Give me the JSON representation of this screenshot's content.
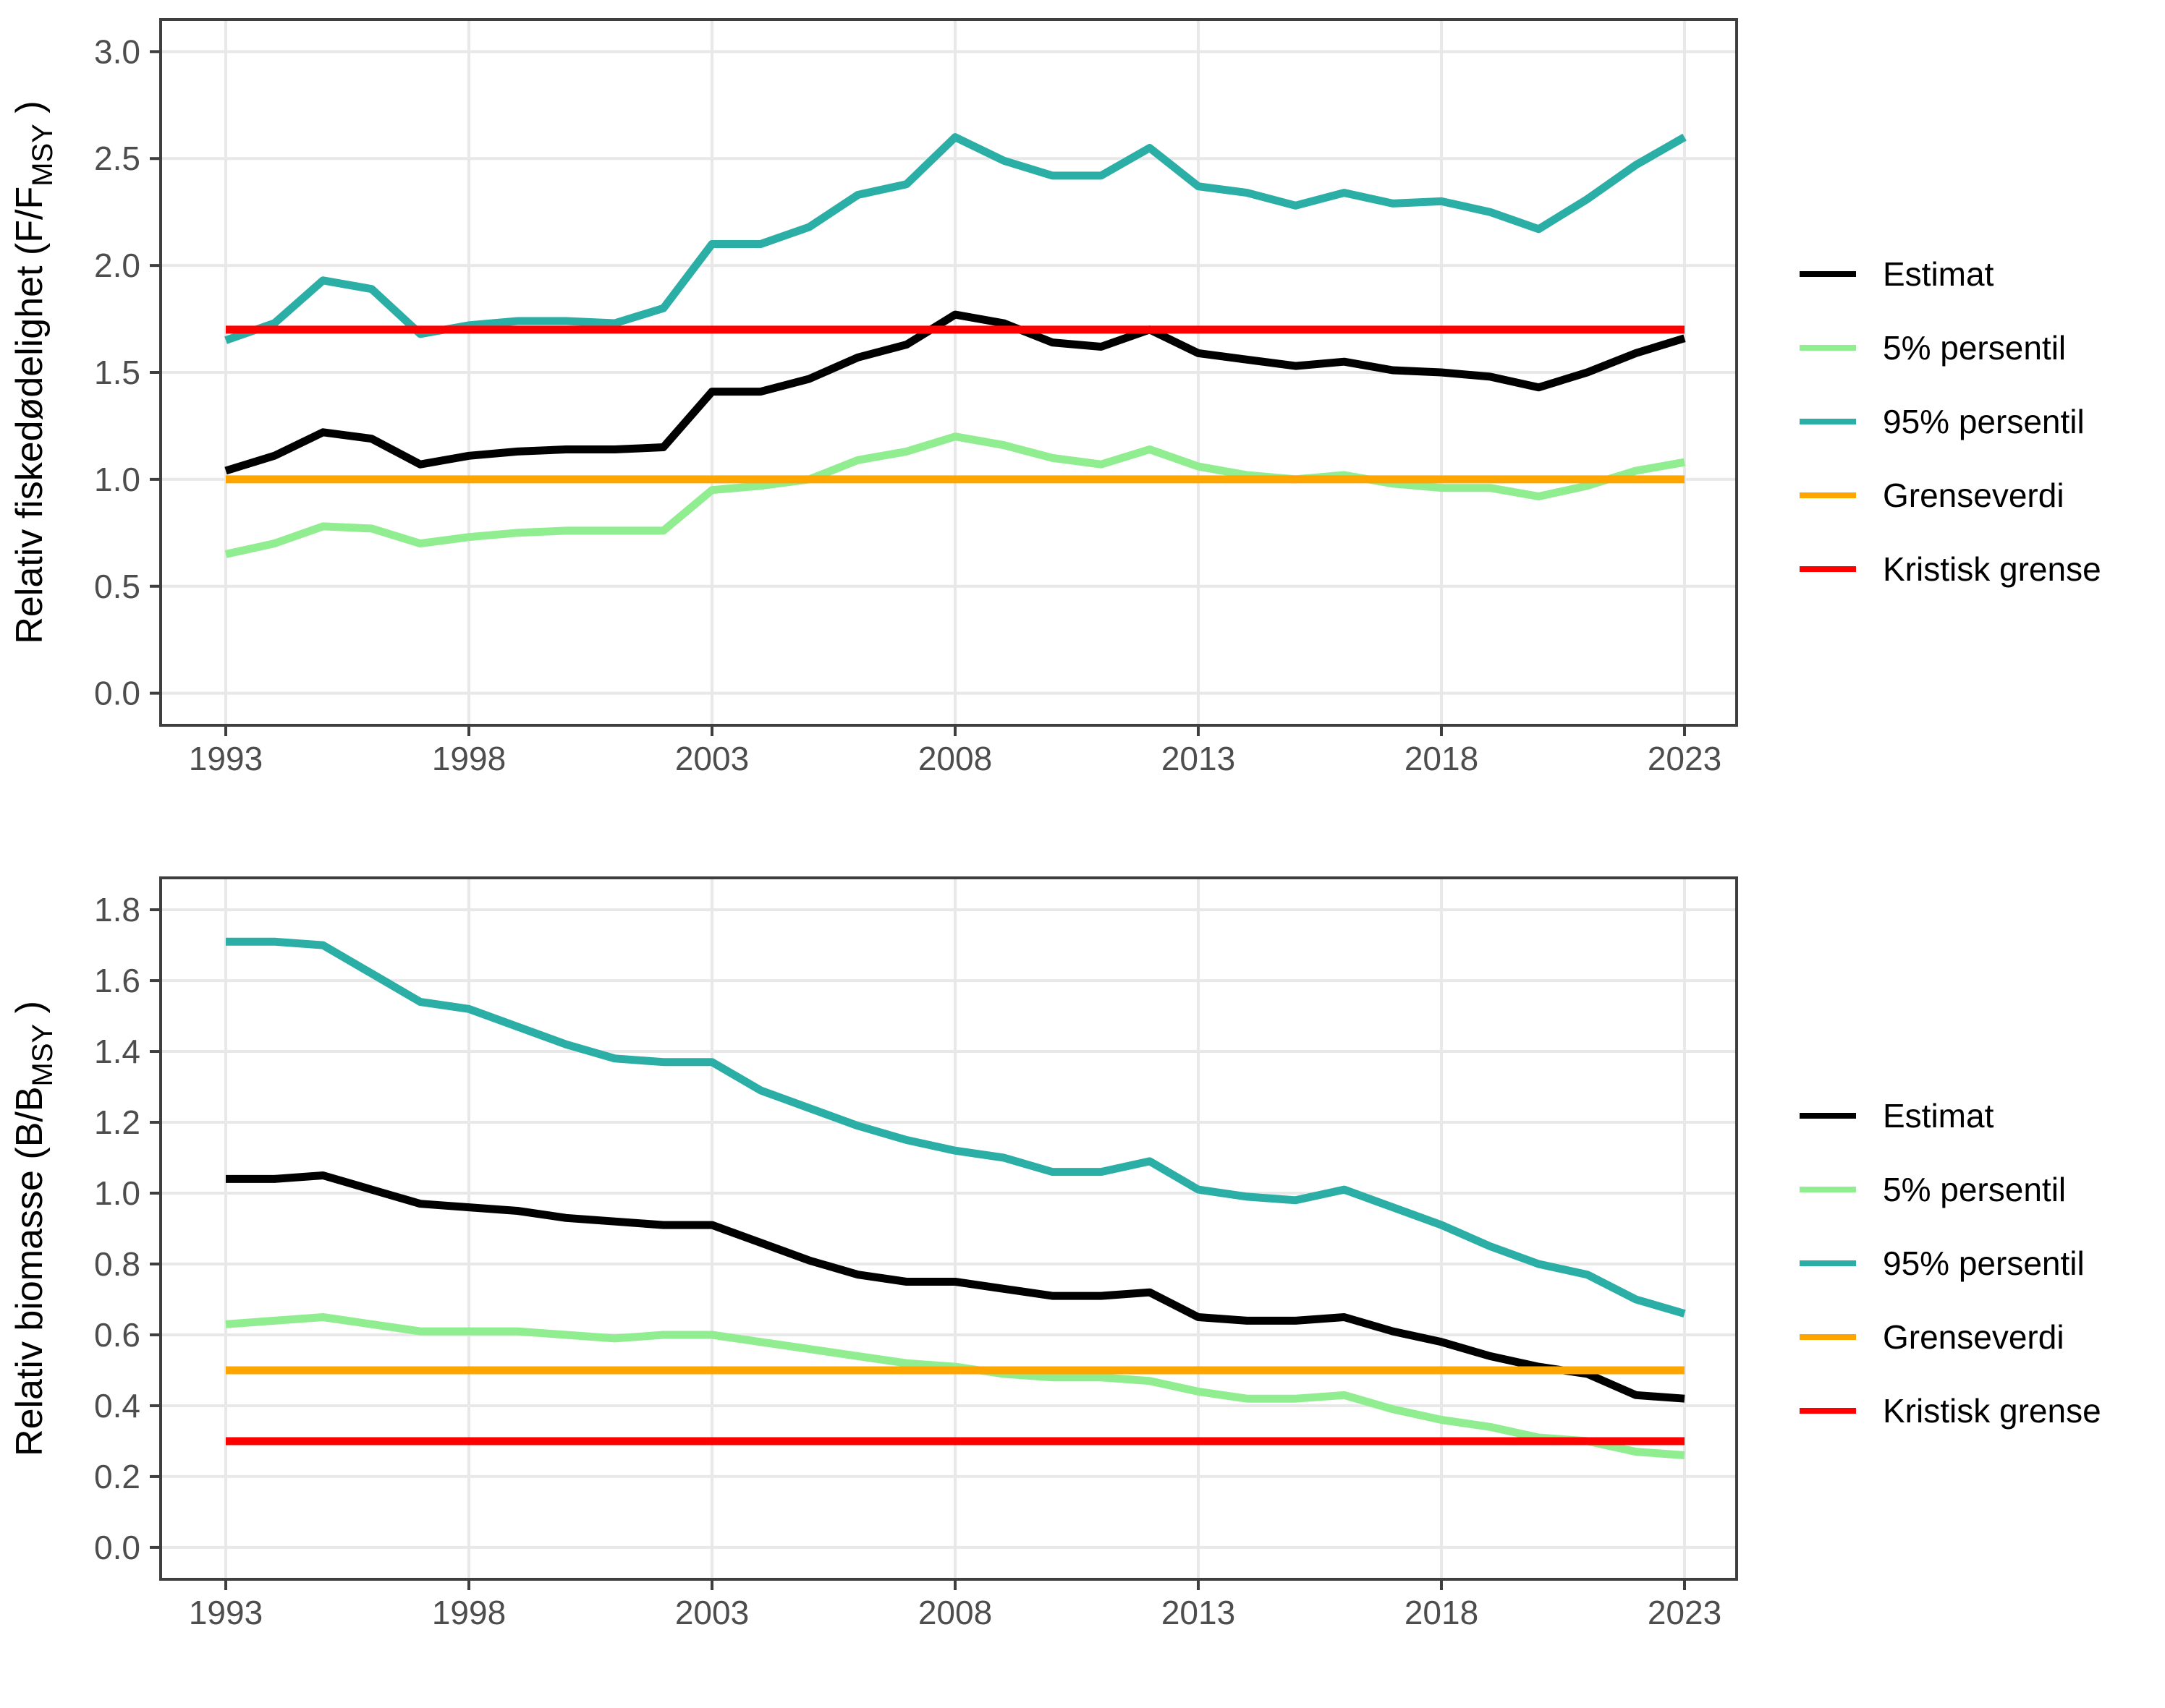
{
  "figure": {
    "background": "#FFFFFF",
    "tick_text_color": "#4D4D4D",
    "axis_title_color": "#000000",
    "grid_color": "#E8E8E8",
    "border_color": "#3F3F3F"
  },
  "legend": {
    "items": [
      "Estimat",
      "5% persentil",
      "95% persentil",
      "Grenseverdi",
      "Kristisk grense"
    ],
    "colors": [
      "#000000",
      "#90EE90",
      "#2AAEA6",
      "#FFA500",
      "#FF0000"
    ]
  },
  "chart_data": [
    {
      "type": "line",
      "title": "",
      "xlabel": "",
      "ylabel": {
        "prefix": "Relativ fiskedødelighet (F/F",
        "sub": "MSY",
        "suffix": " )"
      },
      "x": [
        1993,
        1994,
        1995,
        1996,
        1997,
        1998,
        1999,
        2000,
        2001,
        2002,
        2003,
        2004,
        2005,
        2006,
        2007,
        2008,
        2009,
        2010,
        2011,
        2012,
        2013,
        2014,
        2015,
        2016,
        2017,
        2018,
        2019,
        2020,
        2021,
        2022,
        2023
      ],
      "xticks": [
        "1993",
        "1998",
        "2003",
        "2008",
        "2013",
        "2018",
        "2023"
      ],
      "xtick_years": [
        1993,
        1998,
        2003,
        2008,
        2013,
        2018,
        2023
      ],
      "yticks": [
        "0.0",
        "0.5",
        "1.0",
        "1.5",
        "2.0",
        "2.5",
        "3.0"
      ],
      "ytick_values": [
        0.0,
        0.5,
        1.0,
        1.5,
        2.0,
        2.5,
        3.0
      ],
      "ylim": [
        -0.15,
        3.15
      ],
      "grid": "major",
      "legend_position": "right",
      "series": [
        {
          "name": "Estimat",
          "color": "#000000",
          "values": [
            1.04,
            1.11,
            1.22,
            1.19,
            1.07,
            1.11,
            1.13,
            1.14,
            1.14,
            1.15,
            1.41,
            1.41,
            1.47,
            1.57,
            1.63,
            1.77,
            1.73,
            1.64,
            1.62,
            1.7,
            1.59,
            1.56,
            1.53,
            1.55,
            1.51,
            1.5,
            1.48,
            1.43,
            1.5,
            1.59,
            1.66
          ]
        },
        {
          "name": "5% persentil",
          "color": "#90EE90",
          "values": [
            0.65,
            0.7,
            0.78,
            0.77,
            0.7,
            0.73,
            0.75,
            0.76,
            0.76,
            0.76,
            0.95,
            0.97,
            1.0,
            1.09,
            1.13,
            1.2,
            1.16,
            1.1,
            1.07,
            1.14,
            1.06,
            1.02,
            1.0,
            1.02,
            0.98,
            0.96,
            0.96,
            0.92,
            0.97,
            1.04,
            1.08
          ]
        },
        {
          "name": "95% persentil",
          "color": "#2AAEA6",
          "values": [
            1.65,
            1.73,
            1.93,
            1.89,
            1.68,
            1.72,
            1.74,
            1.74,
            1.73,
            1.8,
            2.1,
            2.1,
            2.18,
            2.33,
            2.38,
            2.6,
            2.49,
            2.42,
            2.42,
            2.55,
            2.37,
            2.34,
            2.28,
            2.34,
            2.29,
            2.3,
            2.25,
            2.17,
            2.31,
            2.47,
            2.6
          ]
        },
        {
          "name": "Grenseverdi",
          "color": "#FFA500",
          "constant": 1.0
        },
        {
          "name": "Kristisk grense",
          "color": "#FF0000",
          "constant": 1.7
        }
      ]
    },
    {
      "type": "line",
      "title": "",
      "xlabel": "",
      "ylabel": {
        "prefix": "Relativ biomasse (B/B",
        "sub": "MSY",
        "suffix": " )"
      },
      "x": [
        1993,
        1994,
        1995,
        1996,
        1997,
        1998,
        1999,
        2000,
        2001,
        2002,
        2003,
        2004,
        2005,
        2006,
        2007,
        2008,
        2009,
        2010,
        2011,
        2012,
        2013,
        2014,
        2015,
        2016,
        2017,
        2018,
        2019,
        2020,
        2021,
        2022,
        2023
      ],
      "xticks": [
        "1993",
        "1998",
        "2003",
        "2008",
        "2013",
        "2018",
        "2023"
      ],
      "xtick_years": [
        1993,
        1998,
        2003,
        2008,
        2013,
        2018,
        2023
      ],
      "yticks": [
        "0.0",
        "0.2",
        "0.4",
        "0.6",
        "0.8",
        "1.0",
        "1.2",
        "1.4",
        "1.6",
        "1.8"
      ],
      "ytick_values": [
        0.0,
        0.2,
        0.4,
        0.6,
        0.8,
        1.0,
        1.2,
        1.4,
        1.6,
        1.8
      ],
      "ylim": [
        -0.09,
        1.89
      ],
      "grid": "major",
      "legend_position": "right",
      "series": [
        {
          "name": "Estimat",
          "color": "#000000",
          "values": [
            1.04,
            1.04,
            1.05,
            1.01,
            0.97,
            0.96,
            0.95,
            0.93,
            0.92,
            0.91,
            0.91,
            0.86,
            0.81,
            0.77,
            0.75,
            0.75,
            0.73,
            0.71,
            0.71,
            0.72,
            0.65,
            0.64,
            0.64,
            0.65,
            0.61,
            0.58,
            0.54,
            0.51,
            0.49,
            0.43,
            0.42
          ]
        },
        {
          "name": "5% persentil",
          "color": "#90EE90",
          "values": [
            0.63,
            0.64,
            0.65,
            0.63,
            0.61,
            0.61,
            0.61,
            0.6,
            0.59,
            0.6,
            0.6,
            0.58,
            0.56,
            0.54,
            0.52,
            0.51,
            0.49,
            0.48,
            0.48,
            0.47,
            0.44,
            0.42,
            0.42,
            0.43,
            0.39,
            0.36,
            0.34,
            0.31,
            0.3,
            0.27,
            0.26
          ]
        },
        {
          "name": "95% persentil",
          "color": "#2AAEA6",
          "values": [
            1.71,
            1.71,
            1.7,
            1.62,
            1.54,
            1.52,
            1.47,
            1.42,
            1.38,
            1.37,
            1.37,
            1.29,
            1.24,
            1.19,
            1.15,
            1.12,
            1.1,
            1.06,
            1.06,
            1.09,
            1.01,
            0.99,
            0.98,
            1.01,
            0.96,
            0.91,
            0.85,
            0.8,
            0.77,
            0.7,
            0.66
          ]
        },
        {
          "name": "Grenseverdi",
          "color": "#FFA500",
          "constant": 0.5
        },
        {
          "name": "Kristisk grense",
          "color": "#FF0000",
          "constant": 0.3
        }
      ]
    }
  ]
}
